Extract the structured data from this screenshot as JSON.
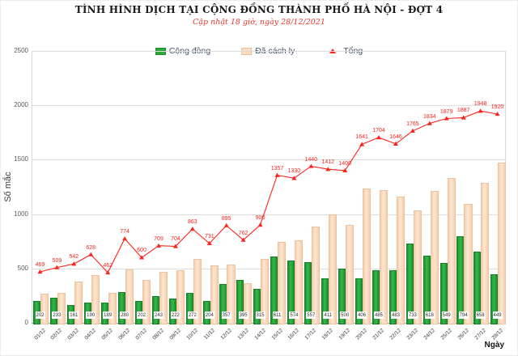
{
  "chart_data": {
    "type": "bar",
    "title": "TÌNH HÌNH DỊCH TẠI CỘNG ĐỒNG THÀNH PHỐ HÀ NỘI - ĐỢT 4",
    "subtitle": "Cập nhật 18 giờ, ngày 28/12/2021",
    "xlabel": "Ngày",
    "ylabel": "Số mắc",
    "ylim": [
      0,
      2500
    ],
    "yticks": [
      0,
      500,
      1000,
      1500,
      2000,
      2500
    ],
    "grid": true,
    "legend_position": "top",
    "categories": [
      "01/12",
      "02/12",
      "03/12",
      "04/12",
      "05/12",
      "06/12",
      "07/12",
      "08/12",
      "09/12",
      "10/12",
      "11/12",
      "12/12",
      "13/12",
      "14/12",
      "15/12",
      "16/12",
      "17/12",
      "18/12",
      "19/12",
      "20/12",
      "21/12",
      "22/12",
      "23/12",
      "24/12",
      "25/12",
      "26/12",
      "27/12",
      "28/12"
    ],
    "series": [
      {
        "name": "Cộng đồng",
        "type": "bar",
        "color": "#2aa83c",
        "values": [
          202,
          233,
          161,
          190,
          189,
          280,
          202,
          243,
          222,
          272,
          204,
          357,
          395,
          315,
          611,
          574,
          557,
          411,
          500,
          406,
          485,
          483,
          733,
          618,
          549,
          794,
          658,
          449
        ]
      },
      {
        "name": "Đã cách ly",
        "type": "bar",
        "color": "#fbdcc4",
        "values": [
          267,
          276,
          381,
          438,
          273,
          494,
          398,
          466,
          482,
          591,
          527,
          538,
          367,
          585,
          746,
          756,
          883,
          1001,
          900,
          1235,
          1219,
          1163,
          1032,
          1216,
          1330,
          1093,
          1290,
          1471
        ]
      },
      {
        "name": "Tổng",
        "type": "line",
        "color": "#fb231b",
        "values": [
          469,
          509,
          542,
          628,
          462,
          774,
          600,
          709,
          704,
          863,
          731,
          895,
          762,
          900,
          1357,
          1330,
          1440,
          1412,
          1400,
          1641,
          1704,
          1646,
          1765,
          1834,
          1879,
          1887,
          1948,
          1920
        ]
      }
    ]
  },
  "colors": {
    "cong_dong_fill": "#2aa83c",
    "da_cach_ly_fill": "#fbdcc4",
    "tong_line": "#fb231b",
    "subtitle_red": "#e8342a",
    "gridline": "#dcdcdc"
  }
}
